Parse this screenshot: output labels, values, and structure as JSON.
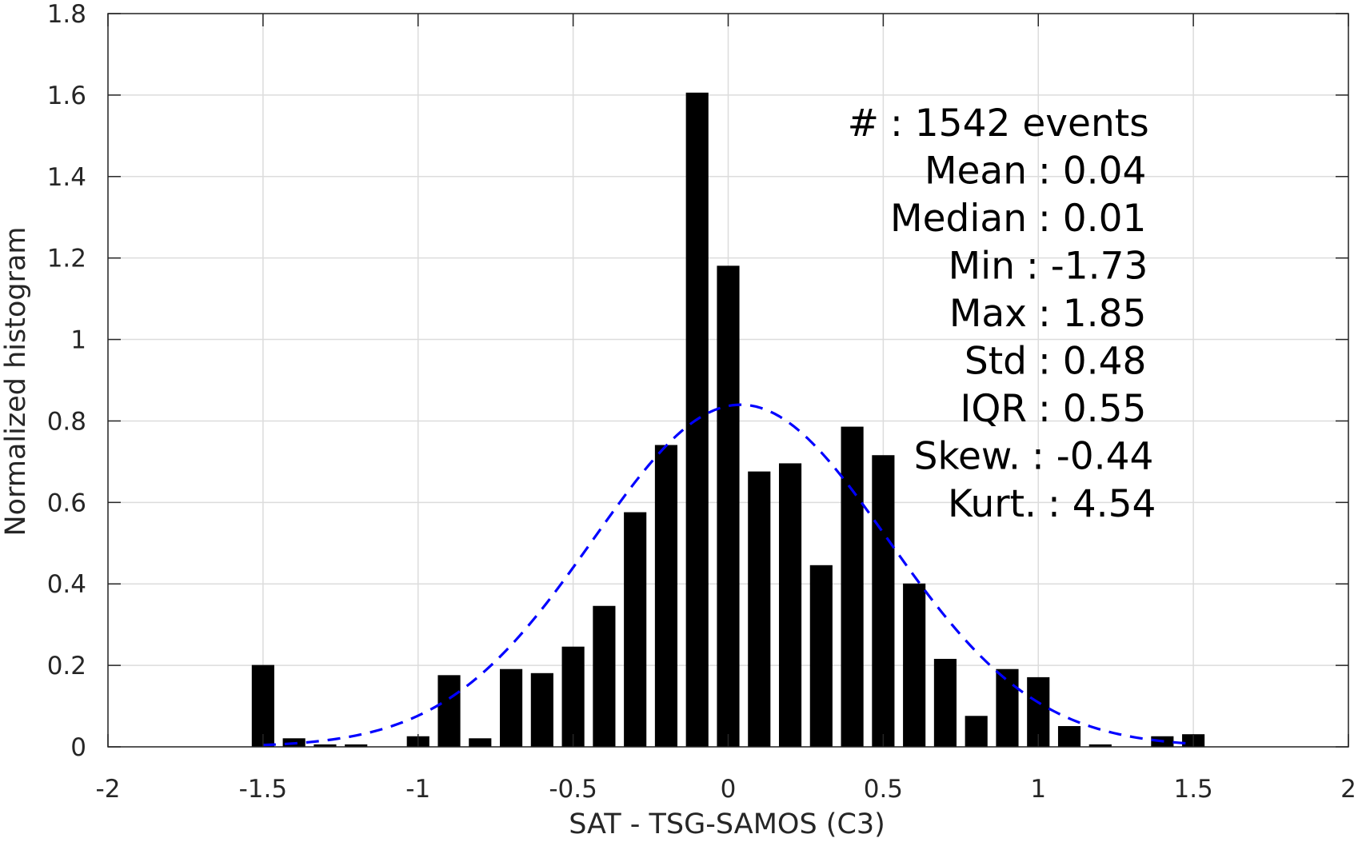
{
  "chart_data": {
    "type": "bar",
    "xlabel": "SAT - TSG-SAMOS (C3)",
    "ylabel": "Normalized histogram",
    "xlim": [
      -2,
      2
    ],
    "ylim": [
      0,
      1.8
    ],
    "xticks": [
      -2,
      -1.5,
      -1,
      -0.5,
      0,
      0.5,
      1,
      1.5,
      2
    ],
    "xtick_labels": [
      "-2",
      "-1.5",
      "-1",
      "-0.5",
      "0",
      "0.5",
      "1",
      "1.5",
      "2"
    ],
    "yticks": [
      0,
      0.2,
      0.4,
      0.6,
      0.8,
      1,
      1.2,
      1.4,
      1.6,
      1.8
    ],
    "ytick_labels": [
      "0",
      "0.2",
      "0.4",
      "0.6",
      "0.8",
      "1",
      "1.2",
      "1.4",
      "1.6",
      "1.8"
    ],
    "grid": true,
    "bin_width": 0.1,
    "bar_color": "#000000",
    "bins": [
      {
        "x": -1.5,
        "value": 0.2
      },
      {
        "x": -1.4,
        "value": 0.02
      },
      {
        "x": -1.3,
        "value": 0.005
      },
      {
        "x": -1.2,
        "value": 0.005
      },
      {
        "x": -1.0,
        "value": 0.025
      },
      {
        "x": -0.9,
        "value": 0.175
      },
      {
        "x": -0.8,
        "value": 0.02
      },
      {
        "x": -0.7,
        "value": 0.19
      },
      {
        "x": -0.6,
        "value": 0.18
      },
      {
        "x": -0.5,
        "value": 0.245
      },
      {
        "x": -0.4,
        "value": 0.345
      },
      {
        "x": -0.3,
        "value": 0.575
      },
      {
        "x": -0.2,
        "value": 0.74
      },
      {
        "x": -0.1,
        "value": 1.605
      },
      {
        "x": 0.0,
        "value": 1.18
      },
      {
        "x": 0.1,
        "value": 0.675
      },
      {
        "x": 0.2,
        "value": 0.695
      },
      {
        "x": 0.3,
        "value": 0.445
      },
      {
        "x": 0.4,
        "value": 0.785
      },
      {
        "x": 0.5,
        "value": 0.715
      },
      {
        "x": 0.6,
        "value": 0.4
      },
      {
        "x": 0.7,
        "value": 0.215
      },
      {
        "x": 0.8,
        "value": 0.075
      },
      {
        "x": 0.9,
        "value": 0.19
      },
      {
        "x": 1.0,
        "value": 0.17
      },
      {
        "x": 1.1,
        "value": 0.05
      },
      {
        "x": 1.2,
        "value": 0.005
      },
      {
        "x": 1.4,
        "value": 0.025
      },
      {
        "x": 1.5,
        "value": 0.03
      }
    ],
    "fit_curve": {
      "style": "dashed",
      "color": "#0000ff",
      "mean": 0.04,
      "std": 0.475,
      "x_range": [
        -1.5,
        1.5
      ]
    },
    "annotations": [
      {
        "label": "#",
        "value": ": 1542 events"
      },
      {
        "label": "Mean",
        "value": ": 0.04"
      },
      {
        "label": "Median",
        "value": ": 0.01"
      },
      {
        "label": "Min",
        "value": ": -1.73"
      },
      {
        "label": "Max",
        "value": ": 1.85"
      },
      {
        "label": "Std",
        "value": ": 0.48"
      },
      {
        "label": "IQR",
        "value": ": 0.55"
      },
      {
        "label": "Skew.",
        "value": ": -0.44"
      },
      {
        "label": "Kurt.",
        "value": ": 4.54"
      }
    ]
  }
}
